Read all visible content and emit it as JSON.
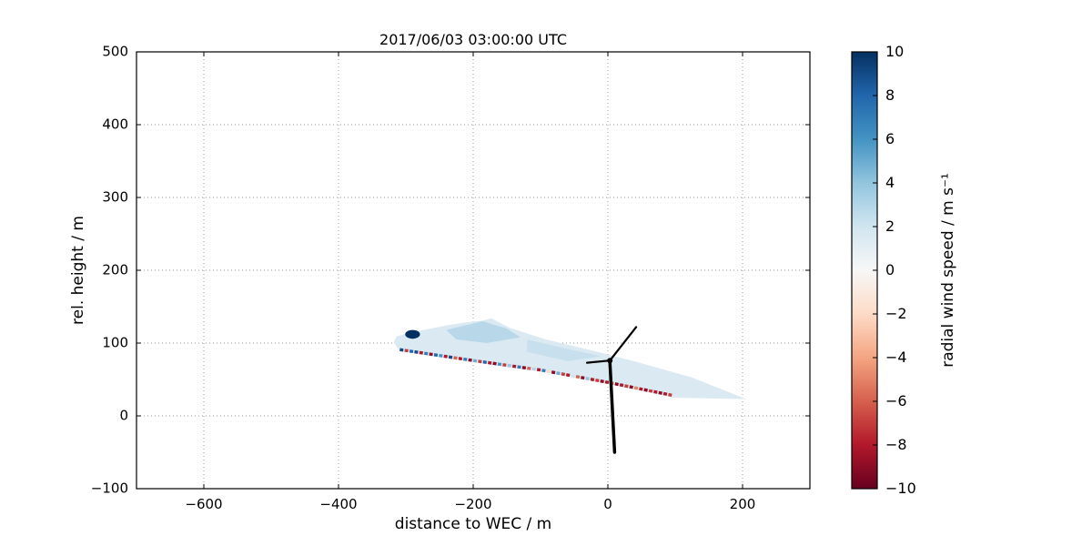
{
  "chart_data": {
    "type": "heatmap",
    "title": "2017/06/03 03:00:00 UTC",
    "xlabel": "distance to WEC / m",
    "ylabel": "rel. height / m",
    "xlim": [
      -700,
      300
    ],
    "ylim": [
      -100,
      500
    ],
    "xticks": [
      -600,
      -400,
      -200,
      0,
      200
    ],
    "xtick_labels": [
      "−600",
      "−400",
      "−200",
      "0",
      "200"
    ],
    "yticks": [
      -100,
      0,
      100,
      200,
      300,
      400,
      500
    ],
    "ytick_labels": [
      "−100",
      "0",
      "100",
      "200",
      "300",
      "400",
      "500"
    ],
    "grid": true,
    "grid_style": "dotted",
    "colorbar": {
      "label": "radial wind speed / m s⁻¹",
      "range": [
        -10,
        10
      ],
      "ticks": [
        10,
        8,
        6,
        4,
        2,
        0,
        -2,
        -4,
        -6,
        -8,
        -10
      ],
      "tick_labels": [
        "10",
        "8",
        "6",
        "4",
        "2",
        "0",
        "−2",
        "−4",
        "−6",
        "−8",
        "−10"
      ],
      "colormap": "RdBu",
      "stops": [
        "#67001f",
        "#b2182b",
        "#d6604d",
        "#f4a582",
        "#fddbc7",
        "#f7f7f7",
        "#d1e5f0",
        "#92c5de",
        "#4393c3",
        "#2166ac",
        "#053061"
      ]
    },
    "scan": {
      "description": "lidar scan cross-section of wind turbine wake",
      "fan_value": 1.5,
      "fan_polygon": [
        [
          206,
          23
        ],
        [
          124,
          53
        ],
        [
          43,
          74
        ],
        [
          -24,
          90
        ],
        [
          -92,
          105
        ],
        [
          -146,
          121
        ],
        [
          -173,
          134
        ],
        [
          -186,
          131
        ],
        [
          -214,
          128
        ],
        [
          -241,
          124
        ],
        [
          -268,
          119
        ],
        [
          -295,
          114
        ],
        [
          -314,
          109
        ],
        [
          -318,
          101
        ],
        [
          -309,
          89
        ],
        [
          -200,
          74
        ],
        [
          -100,
          61
        ],
        [
          0,
          44
        ],
        [
          97,
          25
        ]
      ],
      "patches": [
        {
          "value": 2.8,
          "polygon": [
            [
              -240,
              118
            ],
            [
              -186,
              130
            ],
            [
              -150,
              120
            ],
            [
              -130,
              108
            ],
            [
              -180,
              100
            ],
            [
              -225,
              105
            ]
          ]
        },
        {
          "value": 2.3,
          "polygon": [
            [
              -120,
              105
            ],
            [
              -60,
              92
            ],
            [
              -10,
              82
            ],
            [
              -60,
              75
            ],
            [
              -120,
              88
            ]
          ]
        }
      ],
      "hard_target": {
        "x": -290,
        "y": 112,
        "rx": 11,
        "ry": 6,
        "value": 10
      },
      "beam": {
        "points": [
          [
            -309,
            91
          ],
          [
            -200,
            76
          ],
          [
            -100,
            63
          ],
          [
            0,
            46
          ],
          [
            97,
            28
          ]
        ],
        "values": [
          9,
          -7,
          8,
          9,
          -8,
          7,
          -9,
          8,
          6,
          -8,
          9,
          -6,
          -8,
          7,
          -9,
          5,
          -7,
          8,
          -8,
          -9,
          6,
          -7,
          4,
          -8,
          7,
          -9,
          -6,
          3,
          -8,
          7,
          -2,
          -9,
          5,
          -7,
          -8,
          2,
          -6,
          -9,
          4,
          -8,
          -7,
          -9,
          -8,
          -6,
          -9,
          -8,
          -7,
          -9,
          -5,
          -8,
          -9,
          -7,
          -8,
          -9,
          -8,
          -7
        ]
      }
    },
    "turbine": {
      "name": "WEC (wind energy converter)",
      "color": "#000000",
      "hub": [
        3,
        76
      ],
      "blades": [
        [
          [
            3,
            76
          ],
          [
            42,
            122
          ]
        ],
        [
          [
            3,
            76
          ],
          [
            -31,
            73
          ]
        ]
      ],
      "tower": [
        [
          3,
          74
        ],
        [
          10,
          -50
        ]
      ]
    }
  }
}
